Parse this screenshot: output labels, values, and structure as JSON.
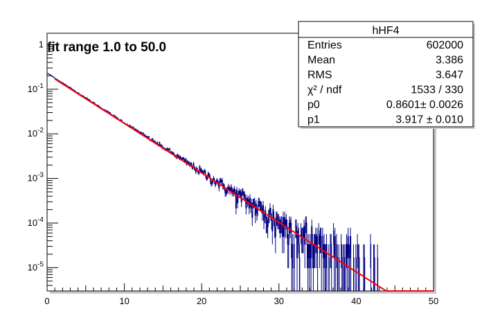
{
  "chart_data": {
    "type": "histogram",
    "title": "fit range 1.0 to 50.0",
    "xlabel": "",
    "ylabel": "",
    "xlim": [
      0,
      50
    ],
    "ylim": [
      3e-06,
      1.8
    ],
    "y_scale": "log",
    "grid": false,
    "x_ticks": [
      {
        "value": 0,
        "label": "0"
      },
      {
        "value": 10,
        "label": "10"
      },
      {
        "value": 20,
        "label": "20"
      },
      {
        "value": 30,
        "label": "30"
      },
      {
        "value": 40,
        "label": "40"
      },
      {
        "value": 50,
        "label": "50"
      }
    ],
    "y_ticks": [
      {
        "value": 1,
        "base": "1",
        "exp": ""
      },
      {
        "value": 0.1,
        "base": "10",
        "exp": "-1"
      },
      {
        "value": 0.01,
        "base": "10",
        "exp": "-2"
      },
      {
        "value": 0.001,
        "base": "10",
        "exp": "-3"
      },
      {
        "value": 0.0001,
        "base": "10",
        "exp": "-4"
      },
      {
        "value": 1e-05,
        "base": "10",
        "exp": "-5"
      }
    ],
    "stats_box": {
      "name": "hHF4",
      "rows": [
        {
          "label": "Entries",
          "value": "602000"
        },
        {
          "label": "Mean",
          "value": "3.386"
        },
        {
          "label": "RMS",
          "value": "3.647"
        },
        {
          "label": "χ² / ndf",
          "value": "1533 / 330"
        },
        {
          "label": "p0",
          "value": "0.8601± 0.0026"
        },
        {
          "label": "p1",
          "value": "3.917 ± 0.010"
        }
      ]
    },
    "histogram": {
      "color": "#000080",
      "x_max": 43.0,
      "model": "exponential",
      "p0": 0.8601,
      "p1": 3.917
    },
    "fit": {
      "color": "#ff0000",
      "function": "p0*exp(-x/p1)",
      "range": [
        1.0,
        50.0
      ]
    }
  }
}
